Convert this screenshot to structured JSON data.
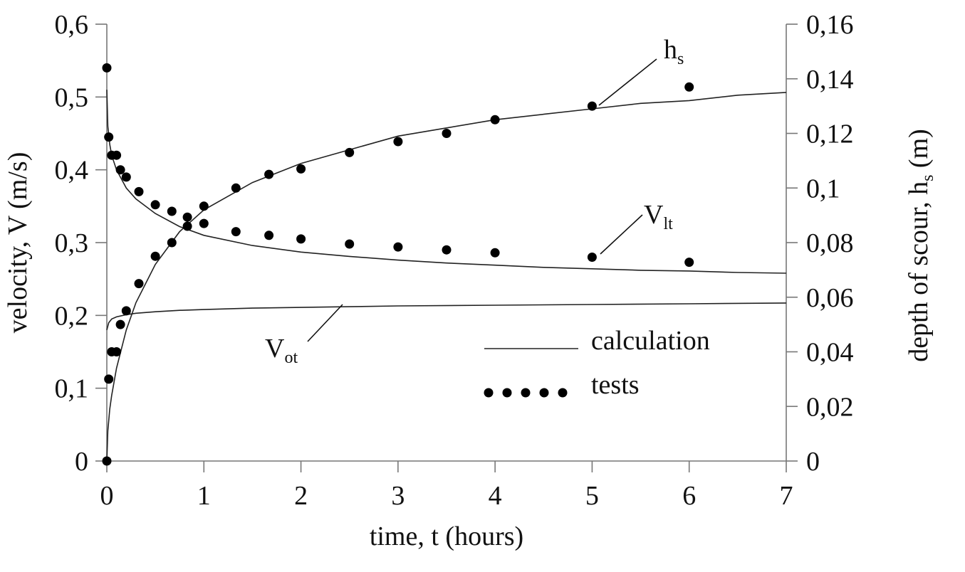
{
  "chart_data": {
    "type": "line",
    "xlabel": "time, t (hours)",
    "ylabel_left": {
      "main": "velocity, V (m/s)"
    },
    "ylabel_right": {
      "main": "depth of scour, h",
      "sub": "s",
      "tail": " (m)"
    },
    "xlim": [
      0,
      7
    ],
    "ylim_left": [
      0,
      0.6
    ],
    "ylim_right": [
      0,
      0.16
    ],
    "x_ticks": [
      "0",
      "1",
      "2",
      "3",
      "4",
      "5",
      "6",
      "7"
    ],
    "y_left_ticks": [
      "0",
      "0,1",
      "0,2",
      "0,3",
      "0,4",
      "0,5",
      "0,6"
    ],
    "y_right_ticks": [
      "0",
      "0,02",
      "0,04",
      "0,06",
      "0,08",
      "0,1",
      "0,12",
      "0,14",
      "0,16"
    ],
    "grid": false,
    "legend": {
      "position": "bottom-right",
      "entries": [
        {
          "label": "calculation",
          "style": "line"
        },
        {
          "label": "tests",
          "style": "dots"
        }
      ]
    },
    "annotations": [
      {
        "base": "h",
        "sub": "s"
      },
      {
        "base": "V",
        "sub": "lt"
      },
      {
        "base": "V",
        "sub": "ot"
      }
    ],
    "series": [
      {
        "label": {
          "base": "h",
          "sub": "s"
        },
        "axis": "right",
        "tests": {
          "x": [
            0,
            0.02,
            0.05,
            0.1,
            0.14,
            0.2,
            0.33,
            0.5,
            0.67,
            0.83,
            1.0,
            1.33,
            1.67,
            2.0,
            2.5,
            3.0,
            3.5,
            4.0,
            5.0,
            6.0
          ],
          "y": [
            0,
            0.03,
            0.04,
            0.04,
            0.05,
            0.055,
            0.065,
            0.075,
            0.08,
            0.086,
            0.087,
            0.1,
            0.105,
            0.107,
            0.113,
            0.117,
            0.12,
            0.125,
            0.13,
            0.137
          ]
        },
        "calculation": {
          "x": [
            0,
            0.01,
            0.03,
            0.05,
            0.1,
            0.2,
            0.3,
            0.5,
            0.75,
            1.0,
            1.5,
            2.0,
            2.5,
            3.0,
            3.5,
            4.0,
            4.5,
            5.0,
            5.5,
            6.0,
            6.5,
            7.0
          ],
          "y": [
            0,
            0.011,
            0.019,
            0.024,
            0.034,
            0.048,
            0.058,
            0.072,
            0.084,
            0.092,
            0.102,
            0.109,
            0.114,
            0.119,
            0.122,
            0.125,
            0.127,
            0.129,
            0.131,
            0.132,
            0.134,
            0.135
          ]
        }
      },
      {
        "label": {
          "base": "V",
          "sub": "lt"
        },
        "axis": "left",
        "tests": {
          "x": [
            0,
            0.02,
            0.05,
            0.1,
            0.14,
            0.2,
            0.33,
            0.5,
            0.67,
            0.83,
            1.0,
            1.33,
            1.67,
            2.0,
            2.5,
            3.0,
            3.5,
            4.0,
            5.0,
            6.0
          ],
          "y": [
            0.54,
            0.445,
            0.42,
            0.42,
            0.4,
            0.39,
            0.37,
            0.352,
            0.343,
            0.335,
            0.35,
            0.315,
            0.31,
            0.305,
            0.298,
            0.294,
            0.29,
            0.286,
            0.28,
            0.273
          ]
        },
        "calculation": {
          "x": [
            0,
            0.01,
            0.03,
            0.05,
            0.1,
            0.2,
            0.3,
            0.5,
            0.75,
            1.0,
            1.5,
            2.0,
            2.5,
            3.0,
            3.5,
            4.0,
            4.5,
            5.0,
            5.5,
            6.0,
            6.5,
            7.0
          ],
          "y": [
            0.51,
            0.46,
            0.435,
            0.42,
            0.4,
            0.375,
            0.36,
            0.34,
            0.322,
            0.31,
            0.296,
            0.287,
            0.281,
            0.276,
            0.272,
            0.269,
            0.266,
            0.264,
            0.262,
            0.261,
            0.259,
            0.258
          ]
        }
      },
      {
        "label": {
          "base": "V",
          "sub": "ot"
        },
        "axis": "left",
        "calculation": {
          "x": [
            0,
            0.02,
            0.05,
            0.1,
            0.2,
            0.3,
            0.5,
            0.75,
            1.0,
            1.5,
            2.0,
            2.5,
            3.0,
            4.0,
            5.0,
            6.0,
            7.0
          ],
          "y": [
            0.18,
            0.19,
            0.195,
            0.198,
            0.201,
            0.203,
            0.205,
            0.207,
            0.208,
            0.21,
            0.211,
            0.212,
            0.213,
            0.214,
            0.215,
            0.216,
            0.217
          ]
        }
      }
    ]
  }
}
